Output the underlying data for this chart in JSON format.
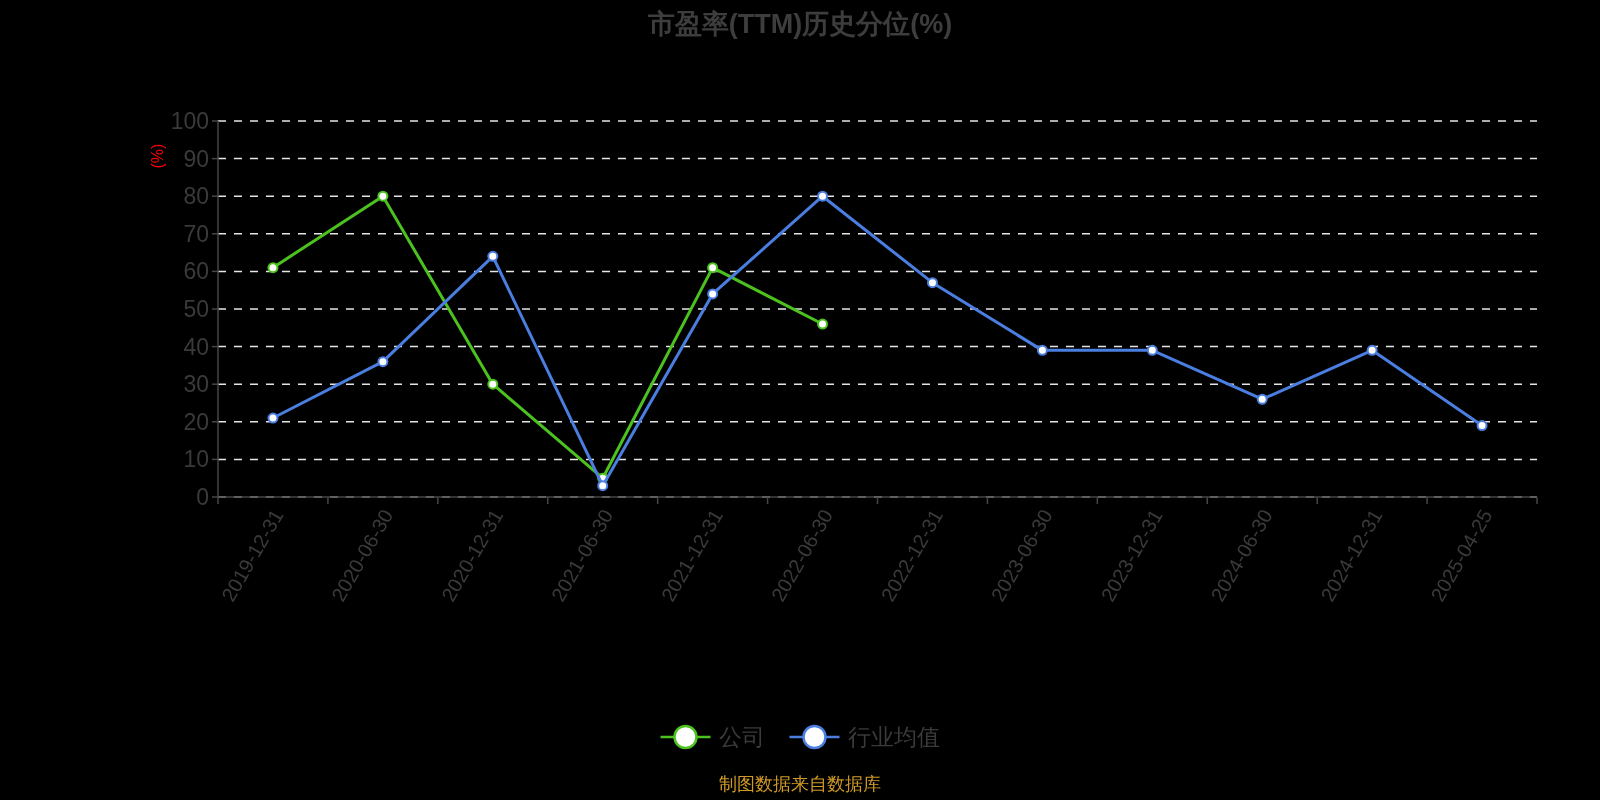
{
  "chart_data": {
    "type": "line",
    "title": "市盈率(TTM)历史分位(%)",
    "ylabel": "(%)",
    "categories": [
      "2019-12-31",
      "2020-06-30",
      "2020-12-31",
      "2021-06-30",
      "2021-12-31",
      "2022-06-30",
      "2022-12-31",
      "2023-06-30",
      "2023-12-31",
      "2024-06-30",
      "2024-12-31",
      "2025-04-25"
    ],
    "series": [
      {
        "name": "公司",
        "color": "#4cc21f",
        "values": [
          61,
          80,
          30,
          5,
          61,
          46,
          null,
          null,
          null,
          null,
          null,
          null
        ]
      },
      {
        "name": "行业均值",
        "color": "#4a7ee0",
        "values": [
          21,
          36,
          64,
          3,
          54,
          80,
          57,
          39,
          39,
          26,
          39,
          19
        ]
      }
    ],
    "ylim": [
      0,
      100
    ],
    "yticks": [
      0,
      10,
      20,
      30,
      40,
      50,
      60,
      70,
      80,
      90,
      100
    ],
    "grid": "y",
    "legend": "bottom",
    "marker": "circle",
    "line_style": "solid",
    "annotations": [
      "制图数据来自数据库"
    ]
  }
}
